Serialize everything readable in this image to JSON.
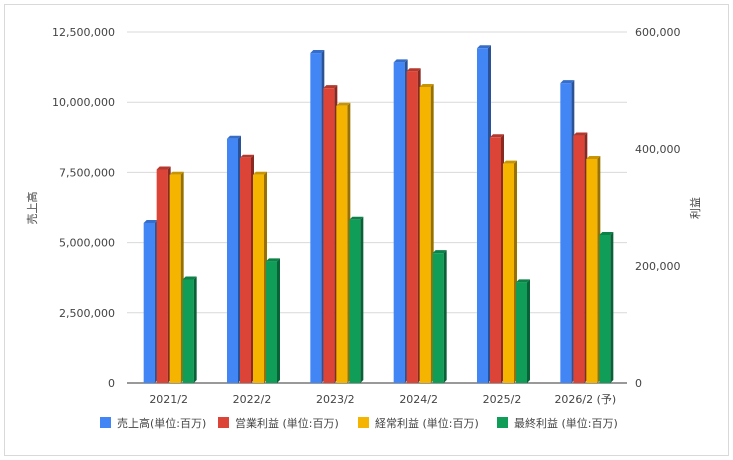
{
  "chart_data": {
    "type": "bar",
    "categories": [
      "2021/2",
      "2022/2",
      "2023/2",
      "2024/2",
      "2025/2",
      "2026/2 (予)"
    ],
    "y_left_label": "売上高",
    "y_right_label": "利益",
    "y_left_ticks": [
      "0",
      "2,500,000",
      "5,000,000",
      "7,500,000",
      "10,000,000",
      "12,500,000"
    ],
    "y_right_ticks": [
      "0",
      "200,000",
      "400,000",
      "600,000"
    ],
    "ylim_left": [
      0,
      12500000
    ],
    "ylim_right": [
      0,
      600000
    ],
    "grid": true,
    "legend_position": "bottom",
    "series": [
      {
        "name": "売上高(単位:百万)",
        "axis": "left",
        "color": "#4285f4",
        "values": [
          5700000,
          8700000,
          11750000,
          11420000,
          11920000,
          10680000
        ]
      },
      {
        "name": "営業利益 (単位:百万)",
        "axis": "right",
        "color": "#db4437",
        "values": [
          365000,
          385000,
          504000,
          533000,
          420000,
          423000
        ]
      },
      {
        "name": "経常利益 (単位:百万)",
        "axis": "right",
        "color": "#f4b400",
        "values": [
          356000,
          356000,
          474000,
          506000,
          375000,
          383000
        ]
      },
      {
        "name": "最終利益 (単位:百万)",
        "axis": "right",
        "color": "#0f9d58",
        "values": [
          177000,
          208000,
          279000,
          222000,
          172000,
          253000
        ]
      }
    ]
  }
}
